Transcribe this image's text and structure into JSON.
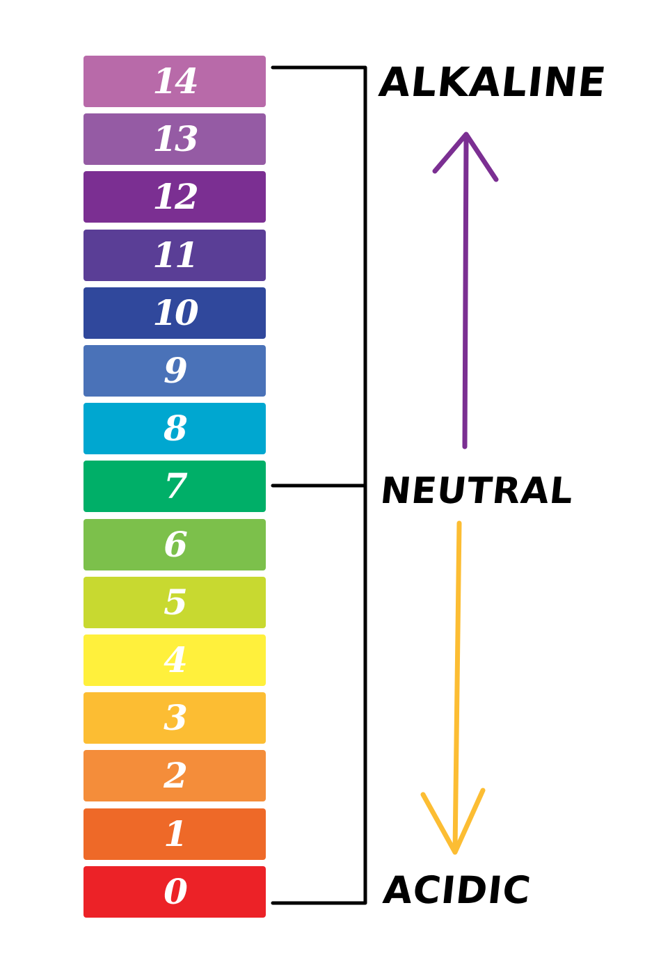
{
  "scale": {
    "values": [
      "14",
      "13",
      "12",
      "11",
      "10",
      "9",
      "8",
      "7",
      "6",
      "5",
      "4",
      "3",
      "2",
      "1",
      "0"
    ],
    "colors": [
      "#b86aa9",
      "#955ba4",
      "#7b2f92",
      "#5a3e96",
      "#30489c",
      "#4a72b8",
      "#00a7d0",
      "#00af68",
      "#7cc04b",
      "#c8d930",
      "#fff03c",
      "#fcbd33",
      "#f48d3a",
      "#ee6928",
      "#ec2227"
    ]
  },
  "labels": {
    "alkaline": "ALKALINE",
    "neutral": "NEUTRAL",
    "acidic": "ACIDIC"
  },
  "arrows": {
    "up_color": "#7b2f92",
    "down_color": "#fcbd33"
  }
}
